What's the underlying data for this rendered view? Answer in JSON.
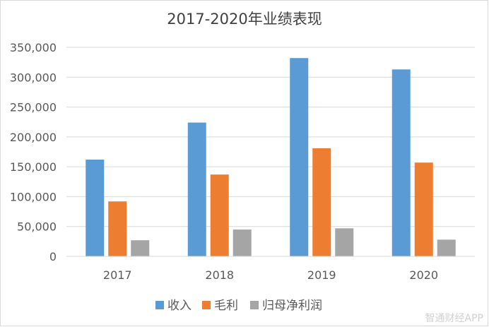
{
  "chart_data": {
    "type": "bar",
    "title": "2017-2020年业绩表现",
    "categories": [
      "2017",
      "2018",
      "2019",
      "2020"
    ],
    "series": [
      {
        "name": "收入",
        "color": "#5b9bd5",
        "values": [
          162000,
          224000,
          332000,
          313000
        ]
      },
      {
        "name": "毛利",
        "color": "#ed7d31",
        "values": [
          92000,
          137000,
          181000,
          157000
        ]
      },
      {
        "name": "归母净利润",
        "color": "#a5a5a5",
        "values": [
          27000,
          45000,
          47000,
          28000
        ]
      }
    ],
    "ylim": [
      0,
      350000
    ],
    "y_ticks": [
      "0",
      "50,000",
      "100,000",
      "150,000",
      "200,000",
      "250,000",
      "300,000",
      "350,000"
    ],
    "y_tick_values": [
      0,
      50000,
      100000,
      150000,
      200000,
      250000,
      300000,
      350000
    ],
    "grid": true,
    "legend_position": "bottom",
    "xlabel": "",
    "ylabel": ""
  },
  "watermark": "智通财经APP"
}
